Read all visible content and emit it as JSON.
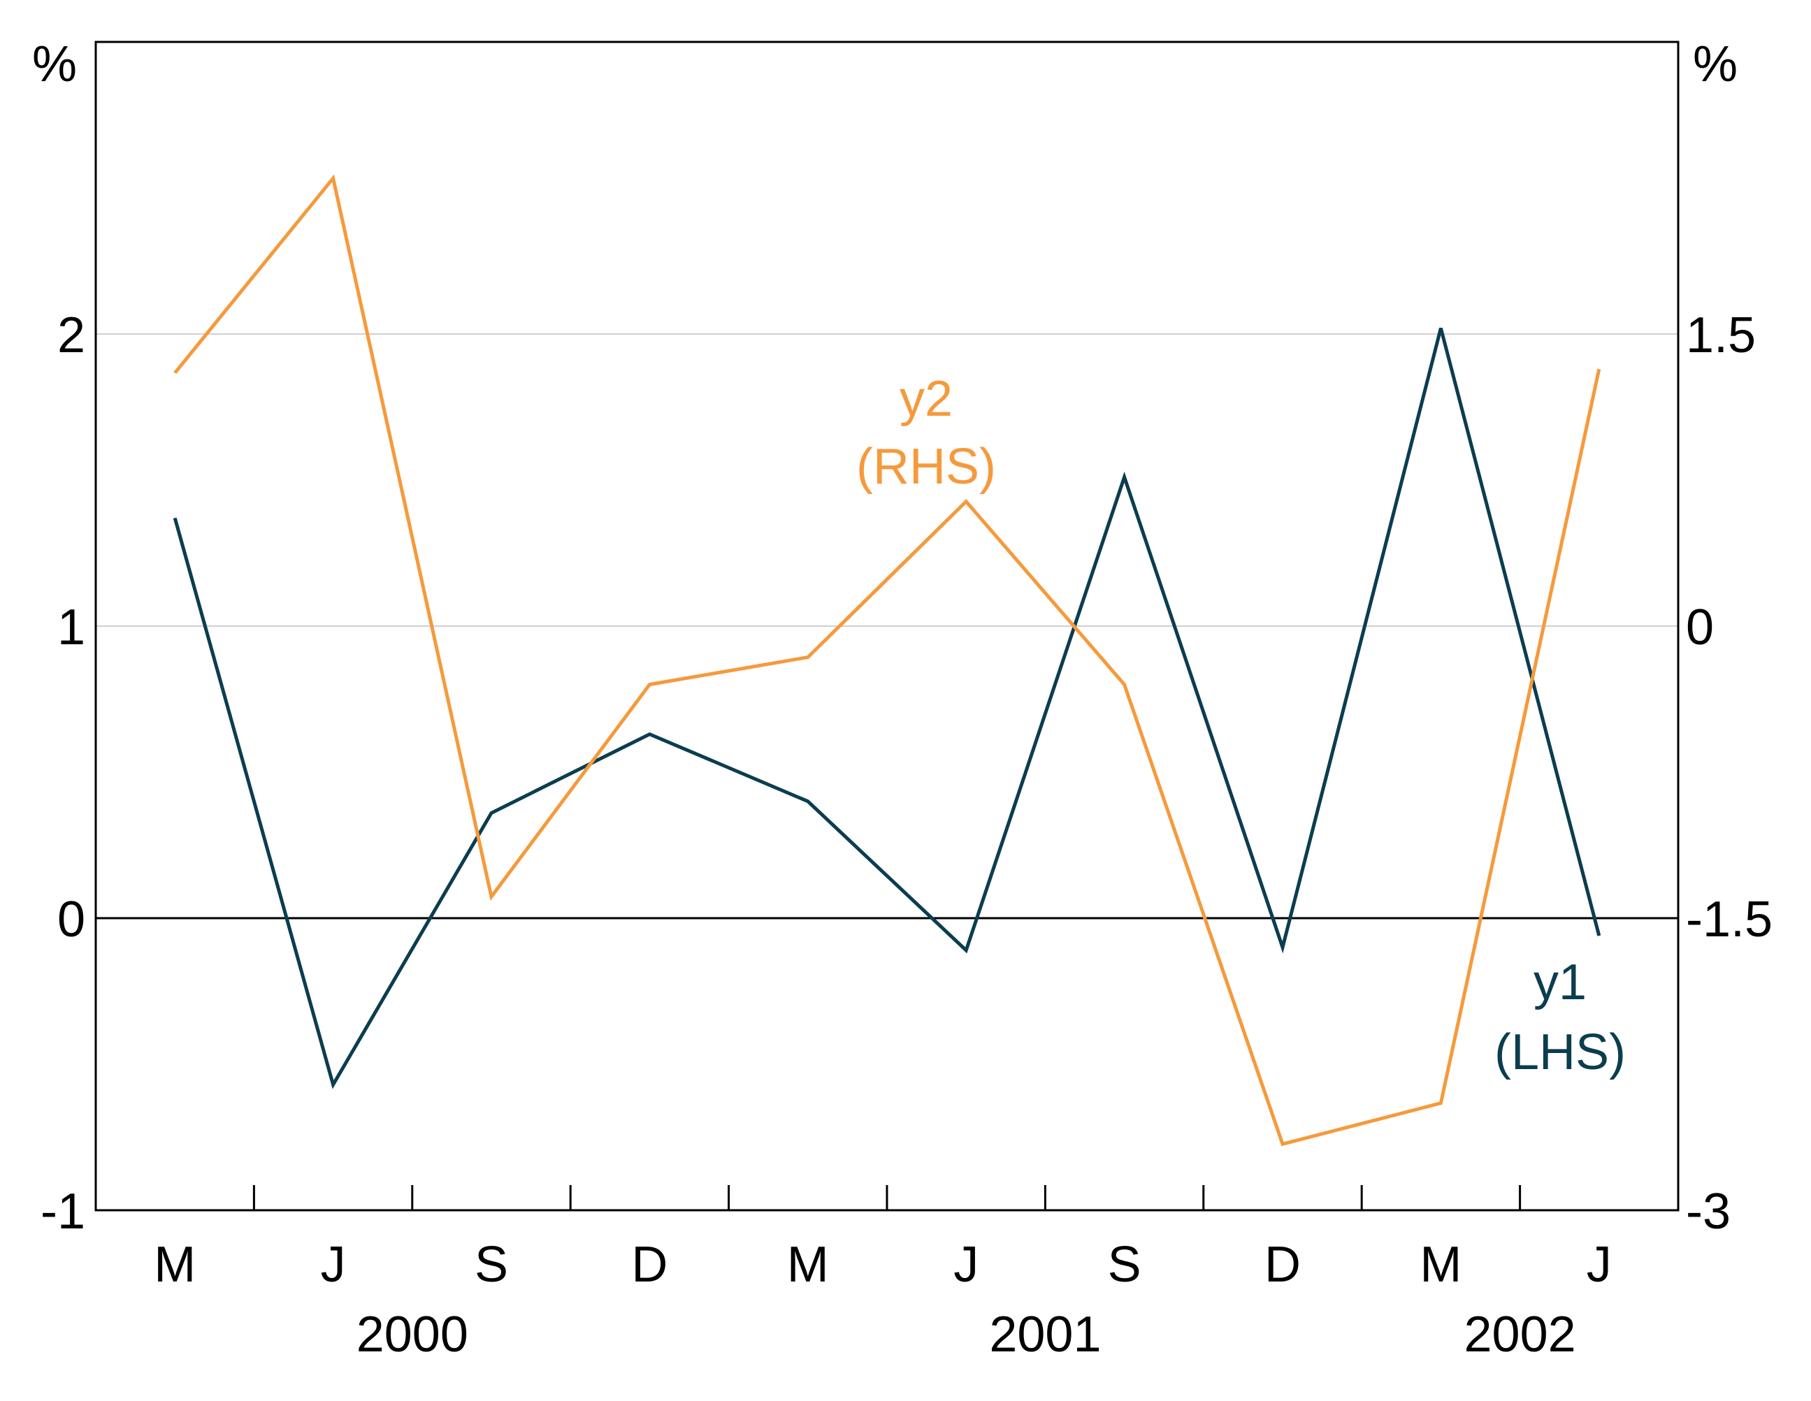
{
  "chart_data": {
    "type": "line",
    "x": [
      "M",
      "J",
      "S",
      "D",
      "M",
      "J",
      "S",
      "D",
      "M",
      "J"
    ],
    "year_labels": [
      {
        "label": "2000",
        "at_quarter_boundary": 2
      },
      {
        "label": "2001",
        "at_quarter_boundary": 6
      },
      {
        "label": "2002",
        "at_quarter_boundary": 9
      }
    ],
    "y_left": {
      "unit": "%",
      "ylim": [
        -1,
        3
      ],
      "ticks": [
        "2",
        "1",
        "0",
        "-1"
      ],
      "tick_values": [
        2,
        1,
        0,
        -1
      ]
    },
    "y_right": {
      "unit": "%",
      "ylim": [
        -3,
        3
      ],
      "ticks": [
        "1.5",
        "0",
        "-1.5",
        "-3"
      ],
      "tick_values": [
        1.5,
        0,
        -1.5,
        -3
      ]
    },
    "grid": true,
    "series": [
      {
        "name": "y1",
        "axis_label": "(LHS)",
        "axis": "left",
        "color": "#0b3d4f",
        "values": [
          1.37,
          -0.57,
          0.36,
          0.63,
          0.4,
          -0.11,
          1.51,
          -0.1,
          2.02,
          -0.06
        ]
      },
      {
        "name": "y2",
        "axis_label": "(RHS)",
        "axis": "right",
        "color": "#f59a3c",
        "values": [
          1.3,
          2.3,
          -1.39,
          -0.3,
          -0.16,
          0.64,
          -0.3,
          -2.66,
          -2.45,
          1.32
        ]
      }
    ]
  }
}
